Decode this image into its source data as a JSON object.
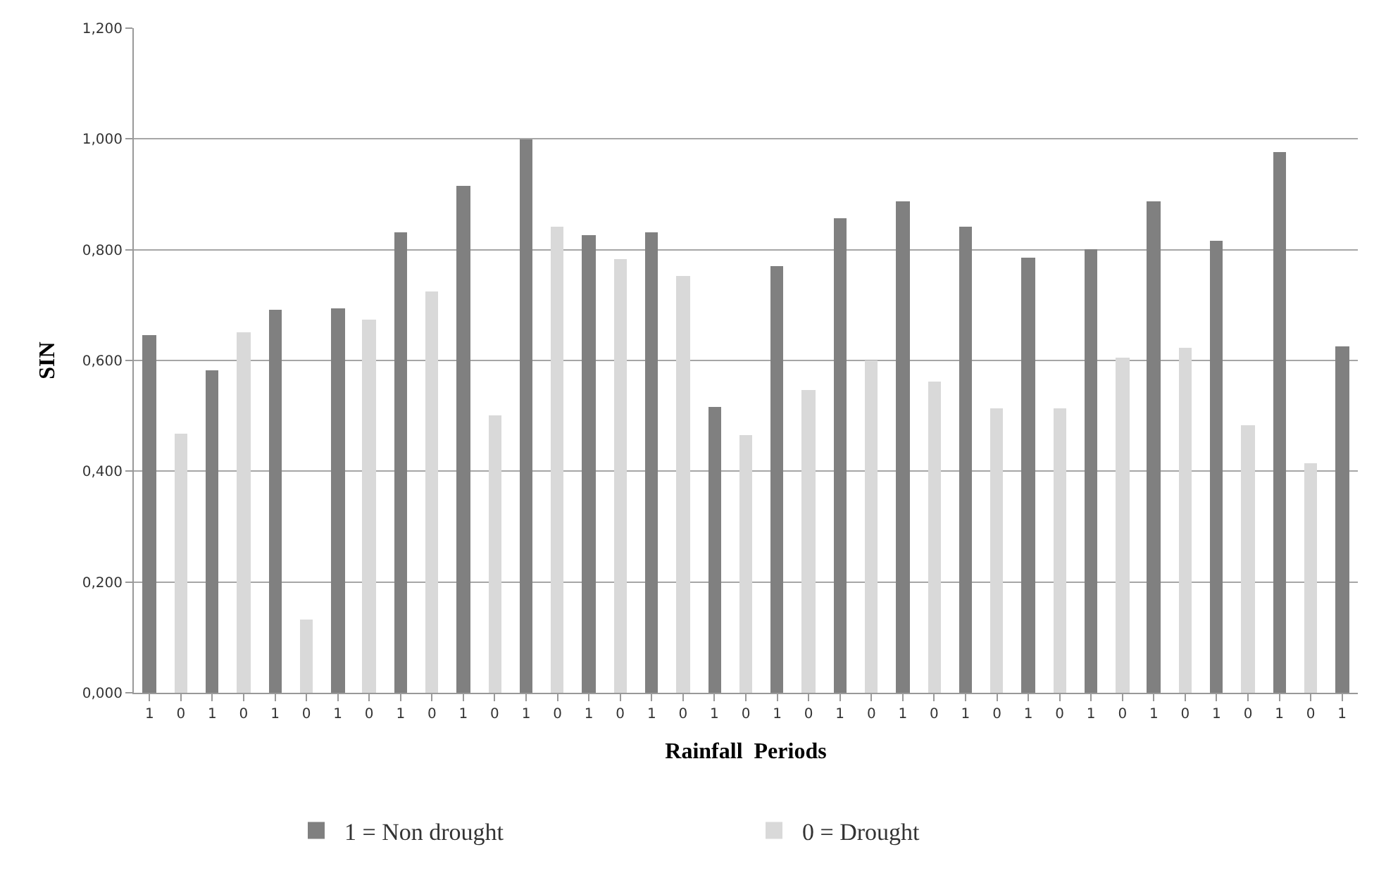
{
  "chart_data": {
    "type": "bar",
    "xlabel": "Rainfall  Periods",
    "ylabel": "SIN",
    "categories": [
      "1",
      "0",
      "1",
      "0",
      "1",
      "0",
      "1",
      "0",
      "1",
      "0",
      "1",
      "0",
      "1",
      "0",
      "1",
      "0",
      "1",
      "0",
      "1",
      "0",
      "1",
      "0",
      "1",
      "0",
      "1",
      "0",
      "1",
      "0",
      "1",
      "0",
      "1",
      "0",
      "1",
      "0",
      "1",
      "0",
      "1",
      "0",
      "1"
    ],
    "series": [
      {
        "name": "1 = Non drought",
        "color": "#808080",
        "values": [
          0.646,
          null,
          0.581,
          null,
          0.692,
          null,
          0.695,
          null,
          0.832,
          null,
          0.915,
          null,
          1.0,
          null,
          0.827,
          null,
          0.832,
          null,
          0.517,
          null,
          0.771,
          null,
          0.856,
          null,
          0.887,
          null,
          0.842,
          null,
          0.786,
          null,
          0.8,
          null,
          0.887,
          null,
          0.817,
          null,
          0.977,
          null,
          0.625
        ]
      },
      {
        "name": "0 = Drought",
        "color": "#d9d9d9",
        "values": [
          null,
          0.467,
          null,
          0.651,
          null,
          0.131,
          null,
          0.674,
          null,
          0.725,
          null,
          0.502,
          null,
          0.842,
          null,
          0.782,
          null,
          0.752,
          null,
          0.466,
          null,
          0.546,
          null,
          0.601,
          null,
          0.563,
          null,
          0.514,
          null,
          0.514,
          null,
          0.605,
          null,
          0.622,
          null,
          0.483,
          null,
          0.415,
          null
        ]
      }
    ],
    "ylim": [
      0,
      1.2
    ],
    "yticks": [
      {
        "value": 0,
        "label": "0,000"
      },
      {
        "value": 0.2,
        "label": "0,200"
      },
      {
        "value": 0.4,
        "label": "0,400"
      },
      {
        "value": 0.6,
        "label": "0,600"
      },
      {
        "value": 0.8,
        "label": "0,800"
      },
      {
        "value": 1.0,
        "label": "1,000"
      },
      {
        "value": 1.2,
        "label": "1,200"
      }
    ],
    "grid": "y",
    "legend": "bottom"
  }
}
